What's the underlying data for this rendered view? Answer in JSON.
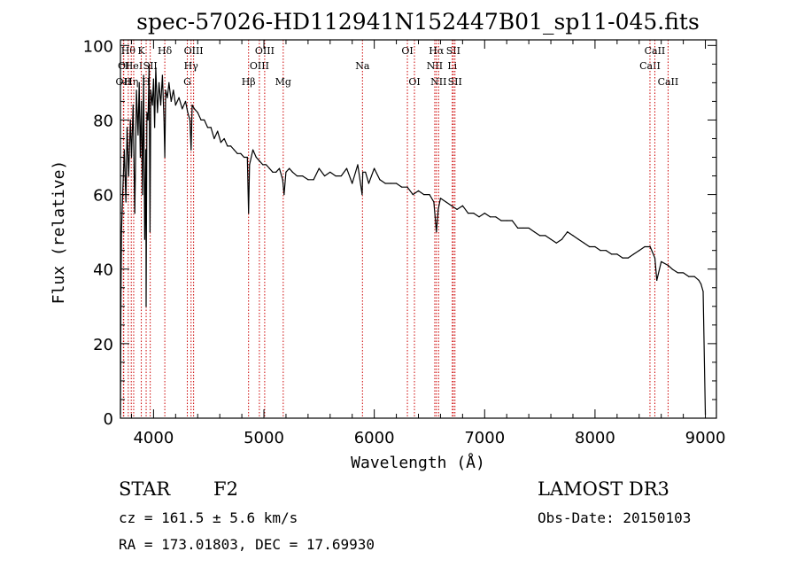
{
  "chart_data": {
    "type": "line",
    "title": "spec-57026-HD112941N152447B01_sp11-045.fits",
    "xlabel": "Wavelength (Å)",
    "ylabel": "Flux (relative)",
    "xlim": [
      3700,
      9100
    ],
    "ylim": [
      0,
      101.5
    ],
    "x_ticks": [
      4000,
      5000,
      6000,
      7000,
      8000,
      9000
    ],
    "y_ticks": [
      0,
      20,
      40,
      60,
      80,
      100
    ],
    "series": [
      {
        "name": "flux",
        "x": [
          3700,
          3705,
          3710,
          3720,
          3735,
          3750,
          3760,
          3775,
          3790,
          3800,
          3815,
          3830,
          3845,
          3860,
          3870,
          3880,
          3890,
          3900,
          3910,
          3920,
          3930,
          3933,
          3940,
          3950,
          3960,
          3968,
          3975,
          3990,
          4000,
          4010,
          4020,
          4035,
          4050,
          4065,
          4080,
          4095,
          4102,
          4110,
          4125,
          4140,
          4160,
          4180,
          4200,
          4230,
          4260,
          4290,
          4310,
          4330,
          4340,
          4350,
          4370,
          4400,
          4430,
          4460,
          4490,
          4520,
          4550,
          4580,
          4610,
          4640,
          4670,
          4700,
          4730,
          4760,
          4790,
          4820,
          4850,
          4861,
          4870,
          4900,
          4930,
          4960,
          4990,
          5020,
          5050,
          5080,
          5110,
          5140,
          5170,
          5183,
          5200,
          5230,
          5260,
          5300,
          5350,
          5400,
          5450,
          5500,
          5550,
          5600,
          5650,
          5700,
          5750,
          5800,
          5850,
          5890,
          5896,
          5920,
          5950,
          6000,
          6050,
          6100,
          6150,
          6200,
          6250,
          6300,
          6350,
          6400,
          6450,
          6500,
          6540,
          6563,
          6580,
          6600,
          6650,
          6700,
          6750,
          6800,
          6850,
          6900,
          6950,
          7000,
          7050,
          7100,
          7150,
          7200,
          7250,
          7300,
          7350,
          7400,
          7450,
          7500,
          7550,
          7600,
          7650,
          7700,
          7750,
          7800,
          7850,
          7900,
          7950,
          8000,
          8050,
          8100,
          8150,
          8200,
          8250,
          8300,
          8350,
          8400,
          8450,
          8500,
          8542,
          8560,
          8600,
          8662,
          8700,
          8750,
          8800,
          8850,
          8900,
          8940,
          8960,
          8980,
          9000
        ],
        "values": [
          1,
          33,
          50,
          60,
          72,
          58,
          78,
          65,
          80,
          70,
          84,
          55,
          88,
          76,
          90,
          70,
          85,
          60,
          92,
          48,
          72,
          30,
          82,
          80,
          95,
          50,
          88,
          84,
          91,
          78,
          94,
          82,
          90,
          84,
          92,
          80,
          70,
          88,
          86,
          90,
          85,
          88,
          84,
          86,
          83,
          85,
          82,
          80,
          72,
          84,
          83,
          82,
          80,
          80,
          78,
          78,
          75,
          77,
          74,
          75,
          73,
          73,
          72,
          71,
          71,
          70,
          70,
          55,
          68,
          72,
          70,
          69,
          68,
          68,
          67,
          66,
          66,
          67,
          64,
          60,
          66,
          67,
          66,
          65,
          65,
          64,
          64,
          67,
          65,
          66,
          65,
          65,
          67,
          63,
          68,
          60,
          66,
          66,
          63,
          67,
          64,
          63,
          63,
          63,
          62,
          62,
          60,
          61,
          60,
          60,
          58,
          50,
          56,
          59,
          58,
          57,
          56,
          57,
          55,
          55,
          54,
          55,
          54,
          54,
          53,
          53,
          53,
          51,
          51,
          51,
          50,
          49,
          49,
          48,
          47,
          48,
          50,
          49,
          48,
          47,
          46,
          46,
          45,
          45,
          44,
          44,
          43,
          43,
          44,
          45,
          46,
          46,
          43,
          37,
          42,
          41,
          40,
          39,
          39,
          38,
          38,
          37,
          36,
          34,
          1
        ]
      }
    ],
    "spectral_lines": [
      {
        "wl": 3727,
        "label": "OII",
        "row": 2
      },
      {
        "wl": 3730,
        "label": "OI",
        "row": 1
      },
      {
        "wl": 3771,
        "label": "Hθ",
        "row": 0
      },
      {
        "wl": 3798,
        "label": "Hη",
        "row": 2
      },
      {
        "wl": 3820,
        "label": "HeI",
        "row": 1
      },
      {
        "wl": 3889,
        "label": "K",
        "row": 0
      },
      {
        "wl": 3933,
        "label": "H",
        "row": 2
      },
      {
        "wl": 3970,
        "label": "SII",
        "row": 1
      },
      {
        "wl": 4102,
        "label": "Hδ",
        "row": 0
      },
      {
        "wl": 4306,
        "label": "G",
        "row": 2
      },
      {
        "wl": 4340,
        "label": "Hγ",
        "row": 1
      },
      {
        "wl": 4363,
        "label": "OIII",
        "row": 0
      },
      {
        "wl": 4861,
        "label": "Hβ",
        "row": 2
      },
      {
        "wl": 4959,
        "label": "OIII",
        "row": 1
      },
      {
        "wl": 5007,
        "label": "OIII",
        "row": 0
      },
      {
        "wl": 5175,
        "label": "Mg",
        "row": 2
      },
      {
        "wl": 5893,
        "label": "Na",
        "row": 1
      },
      {
        "wl": 6300,
        "label": "OI",
        "row": 0
      },
      {
        "wl": 6364,
        "label": "OI",
        "row": 2
      },
      {
        "wl": 6548,
        "label": "NII",
        "row": 1
      },
      {
        "wl": 6563,
        "label": "Hα",
        "row": 0
      },
      {
        "wl": 6583,
        "label": "NII",
        "row": 2
      },
      {
        "wl": 6707,
        "label": "Li",
        "row": 1
      },
      {
        "wl": 6716,
        "label": "SII",
        "row": 0
      },
      {
        "wl": 6731,
        "label": "SII",
        "row": 2
      },
      {
        "wl": 8498,
        "label": "CaII",
        "row": 1
      },
      {
        "wl": 8542,
        "label": "CaII",
        "row": 0
      },
      {
        "wl": 8662,
        "label": "CaII",
        "row": 2
      }
    ],
    "line_color": "#cc0000",
    "series_color": "#000000",
    "grid": false,
    "legend": "none"
  },
  "footer": {
    "object_type": "STAR",
    "subclass": "F2",
    "survey": "LAMOST DR3",
    "cz": "cz = 161.5 ± 5.6 km/s",
    "obs_date": "Obs-Date: 20150103",
    "coords": "RA = 173.01803, DEC =  17.69930"
  }
}
